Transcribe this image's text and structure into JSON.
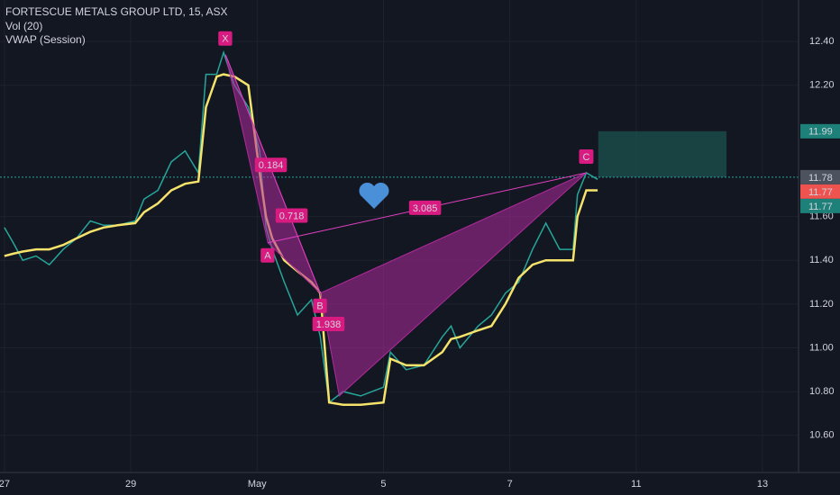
{
  "chart_data": {
    "type": "line",
    "x": [
      0,
      0.14,
      0.29,
      0.5,
      0.71,
      0.93,
      1.14,
      1.36,
      1.57,
      1.79,
      2.07,
      2.21,
      2.43,
      2.64,
      2.86,
      3.07,
      3.19,
      3.36,
      3.47,
      3.64,
      3.86,
      4.04,
      4.14,
      4.24,
      4.43,
      4.64,
      4.86,
      5.0,
      5.14,
      5.36,
      5.64,
      6.0,
      6.11,
      6.36,
      6.64,
      6.93,
      7.07,
      7.21,
      7.5,
      7.71,
      7.93,
      8.14,
      8.36,
      8.57,
      8.79,
      9.0,
      9.07,
      9.21,
      9.39
    ],
    "series": [
      {
        "name": "FORTESCUE METALS GROUP LTD, 15, ASX",
        "color": "#26a69a",
        "values": [
          11.55,
          11.48,
          11.4,
          11.42,
          11.38,
          11.45,
          11.5,
          11.58,
          11.56,
          11.56,
          11.58,
          11.68,
          11.72,
          11.85,
          11.9,
          11.8,
          12.25,
          12.25,
          12.35,
          12.2,
          12.1,
          11.9,
          11.55,
          11.45,
          11.3,
          11.15,
          11.22,
          11.05,
          10.75,
          10.8,
          10.78,
          10.82,
          10.98,
          10.9,
          10.92,
          11.05,
          11.1,
          11.0,
          11.1,
          11.15,
          11.25,
          11.3,
          11.45,
          11.57,
          11.45,
          11.45,
          11.7,
          11.8,
          11.77
        ]
      },
      {
        "name": "VWAP (Session)",
        "color": "#f5e36b",
        "values": [
          11.42,
          11.43,
          11.44,
          11.45,
          11.45,
          11.47,
          11.5,
          11.53,
          11.55,
          11.56,
          11.57,
          11.62,
          11.66,
          11.72,
          11.75,
          11.76,
          12.1,
          12.24,
          12.25,
          12.24,
          12.2,
          11.8,
          11.6,
          11.5,
          11.4,
          11.35,
          11.3,
          11.25,
          10.75,
          10.74,
          10.74,
          10.75,
          10.95,
          10.92,
          10.92,
          10.98,
          11.04,
          11.05,
          11.08,
          11.1,
          11.2,
          11.32,
          11.38,
          11.4,
          11.4,
          11.4,
          11.6,
          11.72,
          11.72
        ]
      }
    ],
    "volume_label": "Vol (20)",
    "xlim": [
      -0.07,
      12.57
    ],
    "xticks": [
      {
        "value": 0,
        "label": "27"
      },
      {
        "value": 2,
        "label": "29"
      },
      {
        "value": 4,
        "label": "May"
      },
      {
        "value": 6,
        "label": "5"
      },
      {
        "value": 8,
        "label": "7"
      },
      {
        "value": 10,
        "label": "11"
      },
      {
        "value": 12,
        "label": "13"
      }
    ],
    "ylim": [
      10.43,
      12.59
    ],
    "yticks": [
      {
        "value": 12.4,
        "label": "12.40"
      },
      {
        "value": 12.2,
        "label": "12.20"
      },
      {
        "value": 11.6,
        "label": "11.60"
      },
      {
        "value": 11.4,
        "label": "11.40"
      },
      {
        "value": 11.2,
        "label": "11.20"
      },
      {
        "value": 11.0,
        "label": "11.00"
      },
      {
        "value": 10.8,
        "label": "10.80"
      },
      {
        "value": 10.6,
        "label": "10.60"
      }
    ],
    "grid": true,
    "pattern": {
      "points": [
        {
          "label": "X",
          "x": 3.5,
          "y": 12.34
        },
        {
          "label": "A",
          "x": 4.17,
          "y": 11.48
        },
        {
          "label": "B",
          "x": 5.0,
          "y": 11.25
        },
        {
          "label": "C",
          "x": 9.21,
          "y": 11.8
        },
        {
          "x": 5.3,
          "y": 10.78
        }
      ],
      "ratios": [
        0.184,
        0.718,
        3.085,
        1.938
      ],
      "color": "#b02a9c"
    },
    "target_zone": {
      "x": [
        9.4,
        11.43
      ],
      "y": [
        11.78,
        11.99
      ],
      "color": "#1b4d4b"
    },
    "last_price_line": 11.78,
    "price_badges": [
      {
        "value": 11.99,
        "color": "#1d8079"
      },
      {
        "value": 11.78,
        "color": "#4c525e"
      },
      {
        "value": 11.77,
        "color": "#ef5350"
      },
      {
        "value": 11.77,
        "color": "#1d8079"
      }
    ]
  }
}
